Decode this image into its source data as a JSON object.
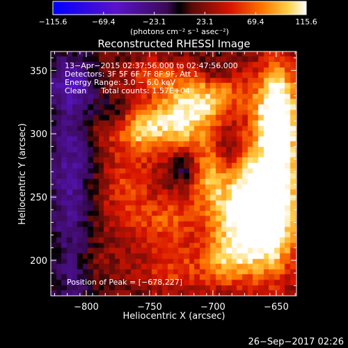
{
  "chart_data": {
    "type": "heatmap",
    "title": "Reconstructed RHESSI Image",
    "xlabel": "Heliocentric X (arcsec)",
    "ylabel": "Heliocentric Y (arcsec)",
    "xlim": [
      -828,
      -634
    ],
    "ylim": [
      172,
      365
    ],
    "x_ticks": [
      -800,
      -750,
      -700,
      -650
    ],
    "y_ticks": [
      200,
      250,
      300,
      350
    ],
    "x_tick_labels": [
      "−800",
      "−750",
      "−700",
      "−650"
    ],
    "y_tick_labels": [
      "200",
      "250",
      "300",
      "350"
    ],
    "colorbar": {
      "min": -115.6,
      "max": 115.6,
      "ticks": [
        -115.6,
        -69.4,
        -23.1,
        23.1,
        69.4,
        115.6
      ],
      "tick_labels": [
        "−115.6",
        "−69.4",
        "−23.1",
        "23.1",
        "69.4",
        "115.6"
      ],
      "unit_label": "(photons cm⁻² s⁻¹ asec⁻²)"
    },
    "info_lines": [
      "13−Apr−2015 02:37:56.000 to 02:47:56.000",
      "Detectors: 3F 5F 6F 7F 8F 9F, Att 1",
      "Energy Range: 3.0 − 6.0 keV",
      "Clean      Total counts: 1.57E+04"
    ],
    "peak_label": "Position of Peak = [−678,227]",
    "peak": [
      -678,
      227
    ],
    "blobs": [
      {
        "x": -673,
        "y": 236,
        "sx": 22,
        "sy": 32,
        "v": 120
      },
      {
        "x": -651,
        "y": 262,
        "sx": 14,
        "sy": 48,
        "v": 95
      },
      {
        "x": -648,
        "y": 320,
        "sx": 12,
        "sy": 28,
        "v": 85
      },
      {
        "x": -718,
        "y": 318,
        "sx": 22,
        "sy": 14,
        "v": 80
      },
      {
        "x": -732,
        "y": 298,
        "sx": 14,
        "sy": 14,
        "v": 55
      },
      {
        "x": -758,
        "y": 303,
        "sx": 12,
        "sy": 10,
        "v": 55
      },
      {
        "x": -705,
        "y": 270,
        "sx": 10,
        "sy": 20,
        "v": 50
      },
      {
        "x": -765,
        "y": 262,
        "sx": 14,
        "sy": 35,
        "v": 45
      },
      {
        "x": -735,
        "y": 232,
        "sx": 14,
        "sy": 14,
        "v": 50
      },
      {
        "x": -730,
        "y": 192,
        "sx": 20,
        "sy": 14,
        "v": 45
      },
      {
        "x": -690,
        "y": 198,
        "sx": 12,
        "sy": 12,
        "v": 40
      },
      {
        "x": -700,
        "y": 335,
        "sx": 25,
        "sy": 12,
        "v": 45
      },
      {
        "x": -745,
        "y": 347,
        "sx": 18,
        "sy": 10,
        "v": 40
      },
      {
        "x": -790,
        "y": 302,
        "sx": 10,
        "sy": 10,
        "v": 25
      },
      {
        "x": -790,
        "y": 245,
        "sx": 10,
        "sy": 25,
        "v": 15
      },
      {
        "x": -790,
        "y": 195,
        "sx": 8,
        "sy": 10,
        "v": 15
      },
      {
        "x": -812,
        "y": 270,
        "sx": 14,
        "sy": 60,
        "v": -50
      },
      {
        "x": -812,
        "y": 340,
        "sx": 12,
        "sy": 12,
        "v": -40
      },
      {
        "x": -722,
        "y": 275,
        "sx": 7,
        "sy": 9,
        "v": -40
      },
      {
        "x": -780,
        "y": 315,
        "sx": 9,
        "sy": 8,
        "v": -25
      },
      {
        "x": -700,
        "y": 347,
        "sx": 8,
        "sy": 6,
        "v": -25
      },
      {
        "x": -688,
        "y": 292,
        "sx": 6,
        "sy": 12,
        "v": -25
      },
      {
        "x": -665,
        "y": 285,
        "sx": 5,
        "sy": 7,
        "v": -15
      },
      {
        "x": -810,
        "y": 182,
        "sx": 10,
        "sy": 10,
        "v": -20
      }
    ]
  },
  "footer_date": "26−Sep−2017 02:26"
}
